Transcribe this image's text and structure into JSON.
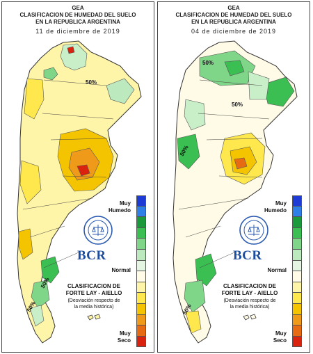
{
  "panels": [
    {
      "header": {
        "org": "GEA",
        "line1": "CLASIFICACION DE HUMEDAD DEL SUELO",
        "line2": "EN LA REPUBLICA ARGENTINA",
        "date": "11 de diciembre de 2019"
      },
      "contour_labels": [
        "50%",
        "50%",
        "50%"
      ],
      "legend": {
        "top_label_1": "Muy",
        "top_label_2": "Humedo",
        "mid_label": "Normal",
        "bottom_label_1": "Muy",
        "bottom_label_2": "Seco",
        "classification_1": "CLASIFICACION DE",
        "classification_2": "FORTE LAY - AIELLO",
        "note_1": "(Desviación respecto de",
        "note_2": "la media histórica)"
      },
      "logo": {
        "text": "BCR"
      }
    },
    {
      "header": {
        "org": "GEA",
        "line1": "CLASIFICACION DE HUMEDAD DEL SUELO",
        "line2": "EN LA REPUBLICA ARGENTINA",
        "date": "04 de diciembre de 2019"
      },
      "contour_labels": [
        "50%",
        "50%",
        "50%",
        "50%"
      ],
      "legend": {
        "top_label_1": "Muy",
        "top_label_2": "Humedo",
        "mid_label": "Normal",
        "bottom_label_1": "Muy",
        "bottom_label_2": "Seco",
        "classification_1": "CLASIFICACION DE",
        "classification_2": "FORTE LAY - AIELLO",
        "note_1": "(Desviación respecto de",
        "note_2": "la media histórica)"
      },
      "logo": {
        "text": "BCR"
      }
    }
  ],
  "legend_colors": [
    "#1f3bd6",
    "#2f7fe8",
    "#1a9a3a",
    "#3cbf52",
    "#7fd688",
    "#bde9bf",
    "#e4f6e2",
    "#fffbe6",
    "#fff5a8",
    "#ffe84d",
    "#f5c400",
    "#f09a1a",
    "#e66b12",
    "#d9230f"
  ],
  "map_colors": {
    "very_wet": "#1a9a3a",
    "wet": "#7fd688",
    "moist": "#c9efc8",
    "normal": "#fffbe6",
    "dry": "#ffe84d",
    "drier": "#f5c400",
    "very_dry": "#e66b12",
    "extreme": "#d9230f",
    "water": "#ffffff"
  }
}
